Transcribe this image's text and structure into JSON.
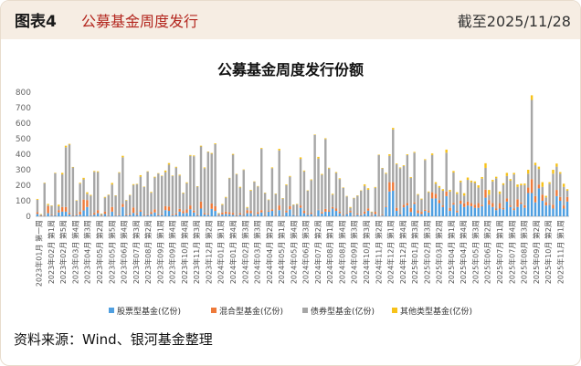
{
  "header": {
    "figure_label": "图表4",
    "figure_title": "公募基金周度发行",
    "as_of": "截至2025/11/28"
  },
  "source": "资料来源：Wind、银河基金整理",
  "colors": {
    "stock": "#4f9fe0",
    "hybrid": "#ee7a3a",
    "bond": "#a6a6a6",
    "other": "#f7c21a",
    "header_bg": "#f6ede3",
    "title_red": "#b3261e"
  },
  "chart_data": {
    "type": "bar",
    "stacked": true,
    "title": "公募基金周度发行份额",
    "ylim": [
      0,
      800
    ],
    "yticks": [
      0,
      100,
      200,
      300,
      400,
      500,
      600,
      700,
      800
    ],
    "grid": false,
    "legend_position": "bottom",
    "category_labels": [
      "2023年01月 第一周",
      "2023年02月 第1周",
      "2023年02月 第5周",
      "2023年03月 第4周",
      "2023年04月 第3周",
      "2023年05月 第2周",
      "2023年05月 第5周",
      "2023年06月 第4周",
      "2023年07月 第3周",
      "2023年08月 第2周",
      "2023年09月 第1周",
      "2023年09月 第4周",
      "2023年10月 第4周",
      "2023年11月 第3周",
      "2023年12月 第2周",
      "2024年01月 第1周",
      "2024年01月 第4周",
      "2024年02月 第3周",
      "2024年03月 第3周",
      "2024年04月 第2周",
      "2024年05月 第1周",
      "2024年05月 第4周",
      "2024年06月 第3周",
      "2024年07月 第2周",
      "2024年08月 第1周",
      "2024年08月 第4周",
      "2024年09月 第3周",
      "2024年10月 第3周",
      "2024年11月 第2周",
      "2024年12月 第1周",
      "2024年12月 第4周",
      "2025年01月 第3周",
      "2025年02月 第3周",
      "2025年03月 第2周",
      "2025年04月 第1周",
      "2025年04月 第4周",
      "2025年05月 第3周",
      "2025年06月 第2周",
      "2025年07月 第1周",
      "2025年07月 第4周",
      "2025年08月 第3周",
      "2025年09月 第2周",
      "2025年10月 第2周",
      "2025年11月 第1周"
    ],
    "x_count": 150,
    "series": [
      {
        "name": "股票型基金(亿份)",
        "key": "stock",
        "values": [
          15,
          3,
          2,
          20,
          5,
          6,
          25,
          30,
          30,
          12,
          3,
          6,
          11,
          38,
          60,
          5,
          10,
          20,
          3,
          15,
          4,
          30,
          5,
          6,
          60,
          7,
          10,
          22,
          10,
          30,
          5,
          8,
          15,
          25,
          6,
          9,
          40,
          35,
          6,
          11,
          30,
          20,
          22,
          45,
          25,
          7,
          50,
          12,
          10,
          48,
          35,
          5,
          12,
          15,
          14,
          10,
          4,
          10,
          5,
          20,
          20,
          5,
          15,
          25,
          3,
          30,
          35,
          5,
          40,
          3,
          25,
          45,
          10,
          5,
          55,
          20,
          10,
          15,
          3,
          40,
          18,
          30,
          30,
          50,
          35,
          20,
          5,
          15,
          25,
          4,
          10,
          6,
          16,
          36,
          4,
          14,
          3,
          5,
          60,
          160,
          165,
          35,
          15,
          58,
          70,
          28,
          80,
          20,
          15,
          35,
          25,
          115,
          115,
          85,
          60,
          130,
          35,
          75,
          25,
          80,
          60,
          70,
          65,
          55,
          55,
          65,
          120,
          75,
          60,
          40,
          50,
          45,
          95,
          60,
          40,
          60,
          80,
          55,
          150,
          150,
          90,
          180,
          100,
          70,
          75,
          50,
          130,
          100,
          50,
          95
        ]
      },
      {
        "name": "混合型基金(亿份)",
        "key": "hybrid",
        "values": [
          12,
          4,
          3,
          45,
          4,
          2,
          15,
          30,
          30,
          10,
          3,
          5,
          20,
          70,
          45,
          3,
          12,
          20,
          2,
          15,
          3,
          30,
          3,
          4,
          20,
          5,
          6,
          35,
          7,
          10,
          4,
          5,
          12,
          20,
          5,
          5,
          25,
          28,
          5,
          8,
          18,
          14,
          22,
          25,
          12,
          5,
          45,
          8,
          5,
          35,
          30,
          4,
          12,
          15,
          12,
          12,
          2,
          10,
          4,
          20,
          15,
          3,
          12,
          15,
          2,
          5,
          10,
          4,
          30,
          2,
          10,
          20,
          3,
          3,
          15,
          15,
          5,
          8,
          2,
          3,
          10,
          18,
          8,
          10,
          15,
          10,
          4,
          5,
          10,
          3,
          7,
          4,
          15,
          15,
          4,
          15,
          2,
          4,
          5,
          60,
          55,
          20,
          5,
          16,
          15,
          25,
          10,
          18,
          14,
          8,
          10,
          40,
          30,
          20,
          10,
          30,
          20,
          12,
          10,
          20,
          24,
          25,
          20,
          20,
          30,
          8,
          52,
          30,
          25,
          10,
          35,
          8,
          20,
          10,
          10,
          50,
          10,
          16,
          35,
          90,
          40,
          25,
          40,
          22,
          5,
          25,
          40,
          25,
          20,
          30
        ]
      },
      {
        "name": "债券型基金(亿份)",
        "key": "bond",
        "values": [
          80,
          5,
          210,
          7,
          58,
          270,
          25,
          210,
          385,
          440,
          310,
          90,
          180,
          130,
          40,
          125,
          265,
          245,
          10,
          90,
          130,
          145,
          125,
          270,
          300,
          90,
          120,
          145,
          190,
          215,
          180,
          275,
          125,
          205,
          265,
          245,
          220,
          270,
          250,
          295,
          215,
          115,
          170,
          320,
          350,
          180,
          355,
          290,
          400,
          320,
          400,
          10,
          50,
          90,
          220,
          375,
          265,
          165,
          290,
          15,
          130,
          215,
          165,
          395,
          145,
          70,
          265,
          135,
          355,
          110,
          165,
          190,
          60,
          70,
          300,
          255,
          150,
          210,
          520,
          330,
          240,
          450,
          270,
          80,
          230,
          210,
          175,
          108,
          20,
          110,
          115,
          155,
          165,
          120,
          20,
          155,
          390,
          300,
          210,
          170,
          340,
          280,
          290,
          250,
          310,
          195,
          320,
          100,
          80,
          320,
          120,
          240,
          65,
          80,
          95,
          250,
          105,
          195,
          110,
          120,
          50,
          140,
          135,
          140,
          100,
          170,
          140,
          35,
          140,
          195,
          60,
          150,
          145,
          160,
          220,
          80,
          110,
          130,
          90,
          510,
          200,
          100,
          50,
          30,
          130,
          200,
          150,
          150,
          120,
          40
        ]
      },
      {
        "name": "其他类型基金(亿份)",
        "key": "other",
        "values": [
          5,
          2,
          1,
          8,
          3,
          3,
          10,
          10,
          10,
          5,
          2,
          2,
          5,
          10,
          10,
          5,
          5,
          5,
          2,
          5,
          3,
          10,
          2,
          4,
          10,
          3,
          2,
          5,
          2,
          10,
          3,
          2,
          5,
          5,
          2,
          3,
          10,
          10,
          2,
          5,
          5,
          4,
          5,
          5,
          5,
          2,
          5,
          5,
          2,
          5,
          5,
          2,
          5,
          5,
          2,
          5,
          2,
          5,
          3,
          5,
          5,
          2,
          3,
          5,
          2,
          3,
          5,
          2,
          10,
          2,
          5,
          5,
          3,
          2,
          10,
          5,
          2,
          5,
          2,
          10,
          5,
          5,
          5,
          5,
          5,
          5,
          2,
          3,
          5,
          2,
          3,
          2,
          10,
          10,
          2,
          5,
          2,
          3,
          5,
          10,
          10,
          5,
          5,
          5,
          5,
          5,
          5,
          5,
          5,
          5,
          5,
          10,
          10,
          10,
          10,
          20,
          10,
          10,
          10,
          10,
          15,
          15,
          10,
          10,
          15,
          10,
          30,
          30,
          10,
          10,
          15,
          10,
          20,
          10,
          10,
          15,
          10,
          10,
          25,
          30,
          15,
          15,
          30,
          10,
          10,
          25,
          20,
          10,
          20,
          10
        ]
      }
    ]
  }
}
